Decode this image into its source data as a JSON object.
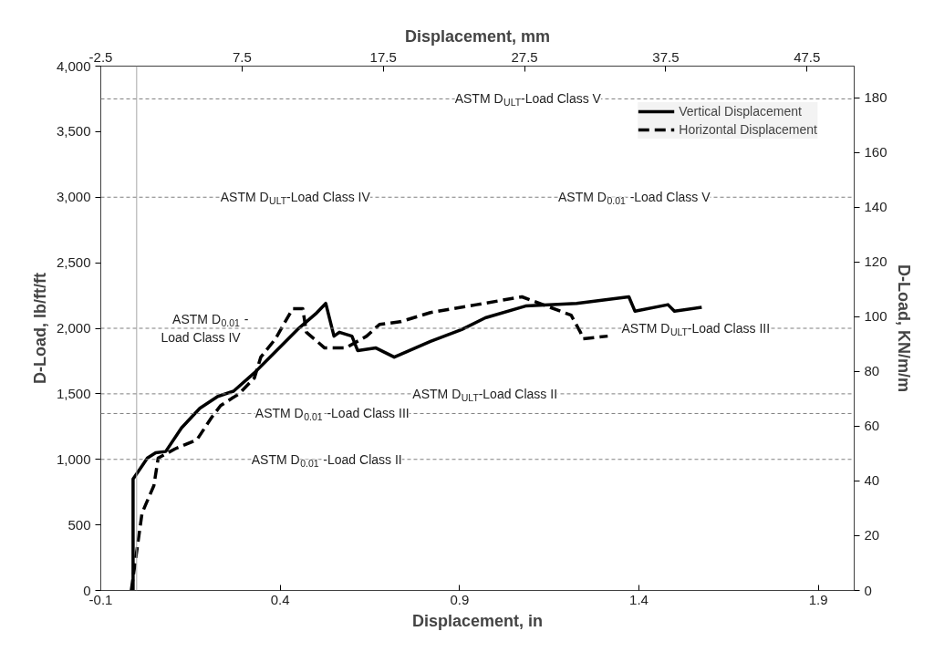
{
  "chart_data": {
    "type": "line",
    "xlabel": "Displacement, in",
    "ylabel": "D-Load, lb/ft/ft",
    "y2label": "D-Load, KN/m/m",
    "x2label": "Displacement, mm",
    "xlim": [
      -0.1,
      2.0
    ],
    "xticks": [
      -0.1,
      0.4,
      0.9,
      1.4,
      1.9
    ],
    "ylim": [
      0,
      4000
    ],
    "yticks": [
      0,
      500,
      {
        "value": 1000,
        "label": "1,000"
      },
      {
        "value": 1500,
        "label": "1,500"
      },
      {
        "value": 2000,
        "label": "2,000"
      },
      {
        "value": 2500,
        "label": "2,500"
      },
      {
        "value": 3000,
        "label": "3,000"
      },
      {
        "value": 3500,
        "label": "3,500"
      },
      {
        "value": 4000,
        "label": "4,000"
      }
    ],
    "y2lim": [
      0,
      191.5
    ],
    "y2ticks": [
      0,
      20,
      40,
      60,
      80,
      100,
      120,
      140,
      160,
      180
    ],
    "x2lim": [
      -2.54,
      50.8
    ],
    "x2ticks": [
      {
        "value": -2.54,
        "label": "-2.5"
      },
      {
        "value": 7.46,
        "label": "7.5"
      },
      {
        "value": 17.46,
        "label": "17.5"
      },
      {
        "value": 27.46,
        "label": "27.5"
      },
      {
        "value": 37.46,
        "label": "37.5"
      },
      {
        "value": 47.46,
        "label": "47.5"
      }
    ],
    "grid": false,
    "legend": "top right",
    "marker": "none",
    "series": [
      {
        "name": "Vertical Displacement",
        "color": "#000000",
        "line_style": "solid",
        "x": [
          -0.01,
          -0.01,
          0.005,
          0.03,
          0.053,
          0.081,
          0.125,
          0.176,
          0.226,
          0.27,
          0.328,
          0.379,
          0.448,
          0.499,
          0.527,
          0.55,
          0.565,
          0.6,
          0.616,
          0.667,
          0.718,
          0.819,
          0.906,
          0.972,
          1.084,
          1.226,
          1.372,
          1.389,
          1.481,
          1.499,
          1.575
        ],
        "values": [
          0,
          850,
          910,
          1010,
          1050,
          1060,
          1240,
          1390,
          1480,
          1520,
          1660,
          1800,
          1990,
          2110,
          2190,
          1940,
          1970,
          1940,
          1830,
          1850,
          1780,
          1900,
          1990,
          2080,
          2170,
          2190,
          2240,
          2130,
          2180,
          2130,
          2160
        ]
      },
      {
        "name": "Horizontal Displacement",
        "color": "#000000",
        "line_style": "dashed",
        "x": [
          -0.015,
          0.015,
          0.048,
          0.06,
          0.107,
          0.168,
          0.209,
          0.234,
          0.285,
          0.328,
          0.346,
          0.387,
          0.412,
          0.435,
          0.463,
          0.473,
          0.524,
          0.583,
          0.641,
          0.677,
          0.735,
          0.819,
          0.947,
          1.074,
          1.211,
          1.237,
          1.244,
          1.313
        ],
        "values": [
          0,
          590,
          800,
          1010,
          1080,
          1150,
          1320,
          1410,
          1500,
          1620,
          1780,
          1920,
          2040,
          2150,
          2150,
          1970,
          1850,
          1850,
          1940,
          2030,
          2050,
          2120,
          2180,
          2240,
          2100,
          1970,
          1920,
          1940
        ]
      }
    ],
    "ref_lines": [
      {
        "axis": "x",
        "value": 0,
        "label": null,
        "color": "#a6a6a6",
        "line_style": "solid"
      },
      {
        "axis": "y",
        "value": 3750,
        "label": "ASTM D$_{ULT}$-Load Class V",
        "color": "#7f7f7f",
        "line_style": "dashed"
      },
      {
        "axis": "y",
        "value": 3000,
        "label": "ASTM D$_{ULT}$-Load Class IV",
        "color": "#7f7f7f",
        "line_style": "dashed"
      },
      {
        "axis": "y",
        "value": 2000,
        "label": "ASTM D$_{0.01}$-\nLoad Class IV",
        "color": "#7f7f7f",
        "line_style": "dashed"
      },
      {
        "axis": "y",
        "value": 1500,
        "label": "ASTM D$_{ULT}$-Load Class II",
        "color": "#7f7f7f",
        "line_style": "dashed"
      },
      {
        "axis": "y",
        "value": 1350,
        "label": "ASTM D$_{0.01}$-Load Class III",
        "color": "#7f7f7f",
        "line_style": "dashed"
      },
      {
        "axis": "y",
        "value": 1000,
        "label": "ASTM D$_{0.01}$-Load Class II",
        "color": "#7f7f7f",
        "line_style": "dashed"
      }
    ],
    "annotations": [
      {
        "text": "ASTM D$_{0.01}$-Load Class V",
        "x": 1.41,
        "y": 3000
      },
      {
        "text": "ASTM D$_{ULT}$-Load Class III",
        "x": 1.6,
        "y": 2000
      }
    ]
  }
}
